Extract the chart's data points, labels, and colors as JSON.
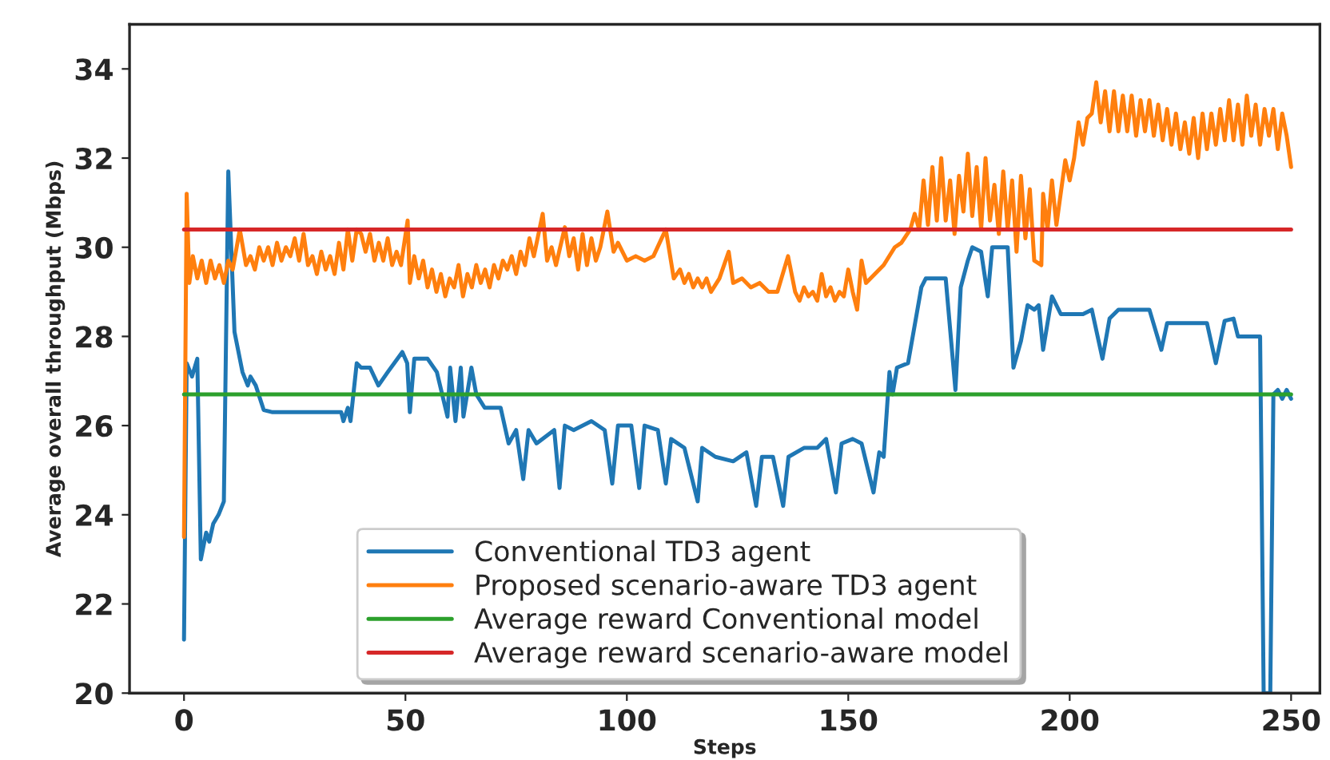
{
  "chart_data": {
    "type": "line",
    "xlabel": "Steps",
    "ylabel": "Average overall throughput (Mbps)",
    "xlim": [
      -12.3,
      256.5
    ],
    "ylim": [
      20,
      35
    ],
    "xticks": [
      0,
      50,
      100,
      150,
      200,
      250
    ],
    "yticks": [
      20,
      22,
      24,
      26,
      28,
      30,
      32,
      34
    ],
    "grid": false,
    "legend": "bottom",
    "marker": "none",
    "line_style": "solid",
    "series": [
      {
        "name": "Conventional TD3 agent",
        "color": "#1f77b4",
        "x": [
          0,
          0.6,
          1.8,
          3,
          3.8,
          5,
          5.7,
          6.6,
          7.8,
          9,
          10,
          11.4,
          13.2,
          14.4,
          15,
          16.2,
          18,
          20,
          25,
          30,
          35.5,
          36,
          37,
          37.6,
          39,
          40,
          42,
          43.9,
          46,
          49.3,
          50.4,
          51,
          52,
          55,
          57.1,
          59.5,
          60.1,
          61.3,
          62.5,
          63.1,
          64.9,
          66,
          67.9,
          71.5,
          73.3,
          75,
          76.6,
          77.8,
          79.6,
          83.6,
          84.8,
          86,
          88,
          92,
          95,
          96.7,
          98,
          101,
          102.8,
          104,
          107,
          108.8,
          110,
          113,
          116,
          117,
          120,
          124,
          127,
          129.2,
          130.5,
          133,
          135.3,
          136.5,
          140,
          143,
          145,
          147.2,
          148.5,
          151,
          153,
          155.7,
          157,
          158,
          159.3,
          160,
          161,
          163.5,
          166.5,
          167.5,
          172,
          174.2,
          175.4,
          177,
          178,
          180,
          181.5,
          182.5,
          186,
          187.3,
          189,
          190.5,
          192,
          193,
          194,
          196,
          198,
          203,
          205,
          207.4,
          209,
          211,
          218,
          220.7,
          222,
          231,
          233,
          235,
          237,
          238,
          243,
          243.8,
          245.3,
          246,
          247,
          248,
          249,
          250
        ],
        "values": [
          21.2,
          27.4,
          27.1,
          27.5,
          23.0,
          23.6,
          23.4,
          23.8,
          24.0,
          24.3,
          31.7,
          28.1,
          27.2,
          26.9,
          27.1,
          26.9,
          26.35,
          26.3,
          26.3,
          26.3,
          26.3,
          26.1,
          26.4,
          26.1,
          27.4,
          27.3,
          27.3,
          26.9,
          27.2,
          27.65,
          27.4,
          26.3,
          27.5,
          27.5,
          27.2,
          26.2,
          27.3,
          26.1,
          27.3,
          26.2,
          27.3,
          26.7,
          26.4,
          26.4,
          25.6,
          25.9,
          24.8,
          25.9,
          25.6,
          25.9,
          24.6,
          26.0,
          25.9,
          26.1,
          25.9,
          24.7,
          26.0,
          26.0,
          24.6,
          26.0,
          25.9,
          24.7,
          25.7,
          25.5,
          24.3,
          25.5,
          25.3,
          25.2,
          25.4,
          24.2,
          25.3,
          25.3,
          24.2,
          25.3,
          25.5,
          25.5,
          25.7,
          24.5,
          25.6,
          25.7,
          25.6,
          24.5,
          25.4,
          25.3,
          27.2,
          26.7,
          27.3,
          27.4,
          29.1,
          29.3,
          29.3,
          26.8,
          29.1,
          29.7,
          30.0,
          29.9,
          28.9,
          30.0,
          30.0,
          27.3,
          27.9,
          28.7,
          28.6,
          28.7,
          27.7,
          28.9,
          28.5,
          28.5,
          28.6,
          27.5,
          28.4,
          28.6,
          28.6,
          27.7,
          28.3,
          28.3,
          27.4,
          28.35,
          28.4,
          28.0,
          28.0,
          20.0,
          20.0,
          26.7,
          26.8,
          26.6,
          26.8,
          26.6
        ]
      },
      {
        "name": "Proposed scenario-aware TD3 agent",
        "color": "#ff7f0e",
        "x": [
          0,
          0.6,
          1.2,
          2,
          3,
          4,
          5,
          6,
          7,
          8,
          9,
          10,
          11,
          12.6,
          14,
          15,
          16,
          17,
          18,
          19,
          20,
          21,
          22,
          23,
          24,
          25,
          26,
          27,
          28,
          29,
          30,
          31,
          32,
          33,
          34,
          35,
          36,
          37,
          38,
          39,
          40,
          41,
          42,
          43,
          44,
          45,
          46,
          47,
          48,
          49,
          50.5,
          51,
          52,
          53,
          54,
          55,
          56,
          57,
          58,
          59,
          60,
          61,
          62,
          63,
          64,
          65,
          66,
          67,
          68,
          69,
          70,
          71,
          72,
          73,
          74,
          75,
          76,
          77,
          78,
          79,
          81,
          82,
          83,
          84,
          86,
          87,
          88,
          89,
          90,
          91,
          92,
          93,
          94,
          95.6,
          97,
          98,
          100,
          102,
          104,
          106,
          108.8,
          110.6,
          112,
          113,
          114,
          115,
          116,
          117,
          118,
          119,
          120.9,
          123,
          124,
          126,
          128,
          130,
          132,
          134,
          136.4,
          138,
          139,
          140,
          141,
          142,
          143,
          144,
          145,
          146,
          147,
          148,
          149,
          150,
          151,
          152,
          153,
          154,
          156,
          158,
          160.5,
          162,
          164,
          165,
          166,
          167,
          168,
          169,
          170,
          171,
          172,
          173,
          174,
          175,
          176,
          177,
          178,
          179,
          180,
          181,
          182,
          183,
          184,
          185,
          186,
          187,
          188,
          189,
          190,
          191,
          192,
          193.6,
          194,
          195,
          196,
          197,
          199,
          200,
          201,
          202,
          203,
          204,
          205,
          206,
          207,
          208,
          209,
          210,
          211,
          212,
          213,
          214,
          215,
          216,
          217,
          218,
          219,
          220,
          221,
          222,
          223,
          224,
          225,
          226,
          227,
          228,
          229,
          230,
          231,
          232,
          233,
          234,
          235,
          236,
          237,
          238,
          239,
          240,
          241,
          242,
          243,
          244,
          245,
          246,
          247,
          248,
          249,
          250
        ],
        "values": [
          23.5,
          31.2,
          29.2,
          29.8,
          29.3,
          29.7,
          29.2,
          29.7,
          29.3,
          29.6,
          29.2,
          29.7,
          29.5,
          30.4,
          29.6,
          29.8,
          29.5,
          30.0,
          29.7,
          30.0,
          29.6,
          30.1,
          29.7,
          30.0,
          29.8,
          30.2,
          29.7,
          30.3,
          29.6,
          29.8,
          29.4,
          29.9,
          29.5,
          29.8,
          29.4,
          30.1,
          29.5,
          30.4,
          29.7,
          30.4,
          30.3,
          29.9,
          30.3,
          29.7,
          30.1,
          29.7,
          30.2,
          29.6,
          29.9,
          29.6,
          30.6,
          29.2,
          29.8,
          29.3,
          29.7,
          29.1,
          29.5,
          29.0,
          29.4,
          28.9,
          29.3,
          29.1,
          29.6,
          28.9,
          29.4,
          29.1,
          29.6,
          29.2,
          29.5,
          29.1,
          29.6,
          29.3,
          29.7,
          29.5,
          29.8,
          29.4,
          29.9,
          29.6,
          30.2,
          29.8,
          30.75,
          29.7,
          30.0,
          29.6,
          30.45,
          29.8,
          30.2,
          29.5,
          30.3,
          29.6,
          30.2,
          29.7,
          30.0,
          30.8,
          29.9,
          30.1,
          29.7,
          29.8,
          29.7,
          29.8,
          30.4,
          29.3,
          29.5,
          29.2,
          29.4,
          29.1,
          29.3,
          29.1,
          29.3,
          29.0,
          29.3,
          29.9,
          29.2,
          29.3,
          29.1,
          29.2,
          29.0,
          29.0,
          29.8,
          29.0,
          28.8,
          29.1,
          28.9,
          29.0,
          28.8,
          29.4,
          28.9,
          29.1,
          28.8,
          29.0,
          28.9,
          29.5,
          29.0,
          28.6,
          29.7,
          29.2,
          29.4,
          29.6,
          30.0,
          30.1,
          30.4,
          30.75,
          30.4,
          31.5,
          30.5,
          31.8,
          30.6,
          32.0,
          30.6,
          31.5,
          30.3,
          31.6,
          30.8,
          32.1,
          30.7,
          31.8,
          30.4,
          32.0,
          30.6,
          31.4,
          30.3,
          31.7,
          30.4,
          31.5,
          29.9,
          31.6,
          30.2,
          31.3,
          29.7,
          29.6,
          31.2,
          30.4,
          31.5,
          30.5,
          31.95,
          31.5,
          32.0,
          32.8,
          32.3,
          32.9,
          33.0,
          33.7,
          32.8,
          33.5,
          32.6,
          33.5,
          32.6,
          33.4,
          32.6,
          33.4,
          32.5,
          33.3,
          32.6,
          33.3,
          32.5,
          33.2,
          32.4,
          33.1,
          32.3,
          33.0,
          32.2,
          32.8,
          32.1,
          32.9,
          32.0,
          33.0,
          32.2,
          33.0,
          32.3,
          33.1,
          32.4,
          33.3,
          32.4,
          33.2,
          32.3,
          33.4,
          32.5,
          33.2,
          32.3,
          33.1,
          32.5,
          33.1,
          32.2,
          33.0,
          32.5,
          31.8
        ]
      },
      {
        "name": "Average reward Conventional model",
        "color": "#2ca02c",
        "x": [
          0,
          250
        ],
        "values": [
          26.7,
          26.7
        ]
      },
      {
        "name": "Average reward scenario-aware model",
        "color": "#d62728",
        "x": [
          0,
          250
        ],
        "values": [
          30.4,
          30.4
        ]
      }
    ]
  }
}
